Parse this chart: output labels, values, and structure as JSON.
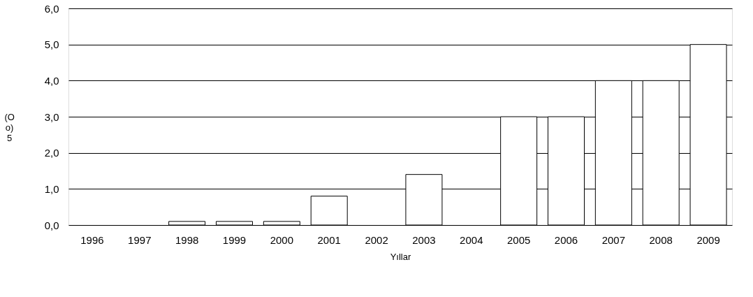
{
  "chart_data": {
    "type": "bar",
    "xlabel": "Yıllar",
    "ylabel": "(O\no)\n5",
    "categories": [
      "1996",
      "1997",
      "1998",
      "1999",
      "2000",
      "2001",
      "2002",
      "2003",
      "2004",
      "2005",
      "2006",
      "2007",
      "2008",
      "2009"
    ],
    "values": [
      0,
      0,
      0.1,
      0.1,
      0.1,
      0.8,
      0,
      1.4,
      0,
      3,
      3,
      4,
      4,
      5
    ],
    "color": "#ffffff",
    "ylim": [
      0,
      6
    ],
    "yticks": [
      {
        "value": 0,
        "label": "0,0"
      },
      {
        "value": 1,
        "label": "1,0"
      },
      {
        "value": 2,
        "label": "2,0"
      },
      {
        "value": 3,
        "label": "3,0"
      },
      {
        "value": 4,
        "label": "4,0"
      },
      {
        "value": 5,
        "label": "5,0"
      },
      {
        "value": 6,
        "label": "6,0"
      }
    ],
    "grid": "y"
  }
}
